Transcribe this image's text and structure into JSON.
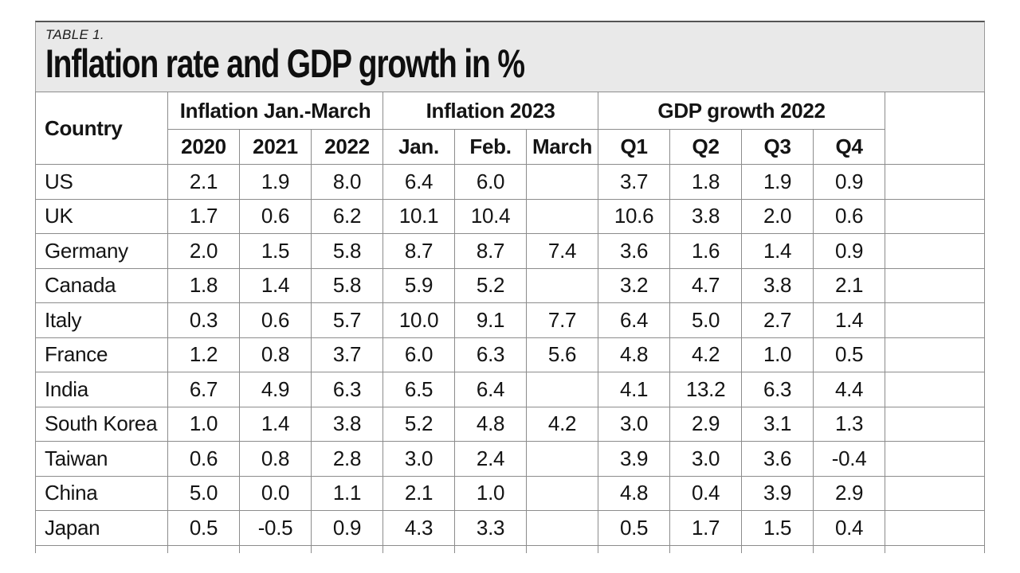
{
  "colors": {
    "header_panel_bg": "#e9e9e9",
    "grid_line": "#8c8c8c",
    "text": "#141414"
  },
  "chart_data": {
    "type": "table",
    "kicker": "TABLE 1.",
    "title": "Inflation rate and GDP growth in %",
    "row_header": "Country",
    "column_groups": [
      {
        "label": "Inflation Jan.-March",
        "columns": [
          "2020",
          "2021",
          "2022"
        ]
      },
      {
        "label": "Inflation 2023",
        "columns": [
          "Jan.",
          "Feb.",
          "March"
        ]
      },
      {
        "label": "GDP growth 2022",
        "columns": [
          "Q1",
          "Q2",
          "Q3",
          "Q4"
        ]
      }
    ],
    "rows": [
      {
        "country": "US",
        "values": [
          "2.1",
          "1.9",
          "8.0",
          "6.4",
          "6.0",
          "",
          "3.7",
          "1.8",
          "1.9",
          "0.9"
        ]
      },
      {
        "country": "UK",
        "values": [
          "1.7",
          "0.6",
          "6.2",
          "10.1",
          "10.4",
          "",
          "10.6",
          "3.8",
          "2.0",
          "0.6"
        ]
      },
      {
        "country": "Germany",
        "values": [
          "2.0",
          "1.5",
          "5.8",
          "8.7",
          "8.7",
          "7.4",
          "3.6",
          "1.6",
          "1.4",
          "0.9"
        ]
      },
      {
        "country": "Canada",
        "values": [
          "1.8",
          "1.4",
          "5.8",
          "5.9",
          "5.2",
          "",
          "3.2",
          "4.7",
          "3.8",
          "2.1"
        ]
      },
      {
        "country": "Italy",
        "values": [
          "0.3",
          "0.6",
          "5.7",
          "10.0",
          "9.1",
          "7.7",
          "6.4",
          "5.0",
          "2.7",
          "1.4"
        ]
      },
      {
        "country": "France",
        "values": [
          "1.2",
          "0.8",
          "3.7",
          "6.0",
          "6.3",
          "5.6",
          "4.8",
          "4.2",
          "1.0",
          "0.5"
        ]
      },
      {
        "country": "India",
        "values": [
          "6.7",
          "4.9",
          "6.3",
          "6.5",
          "6.4",
          "",
          "4.1",
          "13.2",
          "6.3",
          "4.4"
        ]
      },
      {
        "country": "South Korea",
        "values": [
          "1.0",
          "1.4",
          "3.8",
          "5.2",
          "4.8",
          "4.2",
          "3.0",
          "2.9",
          "3.1",
          "1.3"
        ]
      },
      {
        "country": "Taiwan",
        "values": [
          "0.6",
          "0.8",
          "2.8",
          "3.0",
          "2.4",
          "",
          "3.9",
          "3.0",
          "3.6",
          "-0.4"
        ]
      },
      {
        "country": "China",
        "values": [
          "5.0",
          "0.0",
          "1.1",
          "2.1",
          "1.0",
          "",
          "4.8",
          "0.4",
          "3.9",
          "2.9"
        ]
      },
      {
        "country": "Japan",
        "values": [
          "0.5",
          "-0.5",
          "0.9",
          "4.3",
          "3.3",
          "",
          "0.5",
          "1.7",
          "1.5",
          "0.4"
        ]
      }
    ]
  }
}
